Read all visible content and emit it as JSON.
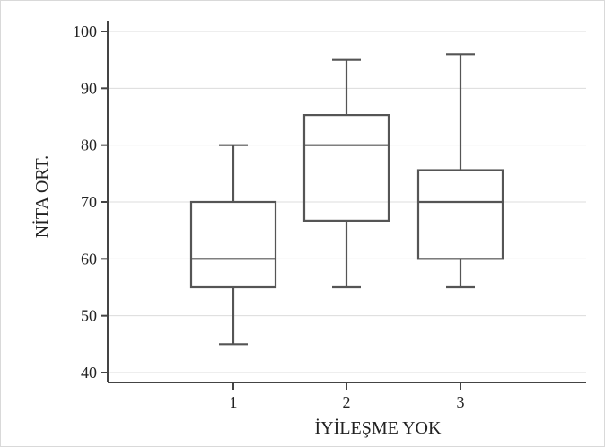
{
  "chart_data": {
    "type": "boxplot",
    "title": "",
    "xlabel": "İYİLEŞME YOK",
    "ylabel": "NİTA ORT.",
    "categories": [
      "1",
      "2",
      "3"
    ],
    "boxes": [
      {
        "category": "1",
        "min": 45,
        "q1": 55,
        "median": 60,
        "q3": 70,
        "max": 80
      },
      {
        "category": "2",
        "min": 55,
        "q1": 66.7,
        "median": 80,
        "q3": 85.3,
        "max": 95
      },
      {
        "category": "3",
        "min": 55,
        "q1": 60,
        "median": 70,
        "q3": 75.6,
        "max": 96
      }
    ],
    "ylim": [
      38,
      102
    ],
    "yticks": [
      40,
      50,
      60,
      70,
      80,
      90,
      100
    ],
    "grid": true,
    "legend": "none"
  }
}
